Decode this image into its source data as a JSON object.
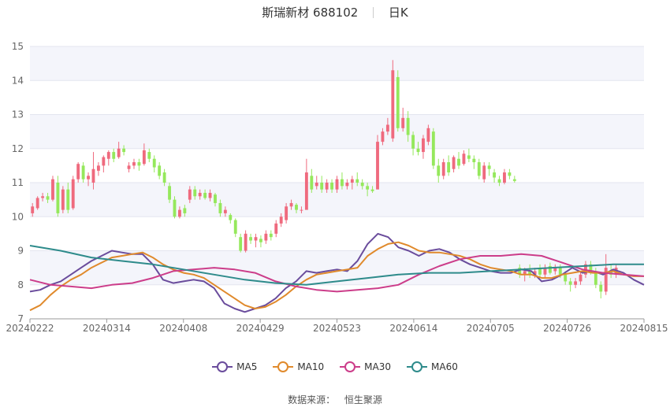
{
  "header": {
    "name": "斯瑞新材 688102",
    "period": "日K"
  },
  "source": {
    "label": "数据来源：",
    "value": "恒生聚源"
  },
  "colors": {
    "up": "#ef6a7e",
    "down": "#95e85c",
    "grid_band": "#f4f5fb",
    "axis": "#999999"
  },
  "chart_data": {
    "type": "candlestick",
    "ylim": [
      7,
      15
    ],
    "yticks": [
      "7",
      "8",
      "9",
      "10",
      "11",
      "12",
      "13",
      "14",
      "15"
    ],
    "xticks": [
      "20240222",
      "20240314",
      "20240408",
      "20240429",
      "20240523",
      "20240614",
      "20240705",
      "20240726",
      "20240815"
    ],
    "xtick_index": [
      0,
      15,
      30,
      45,
      60,
      75,
      90,
      105,
      120
    ],
    "n": 121,
    "candles": [
      [
        10.1,
        10.3,
        10.4,
        10.0
      ],
      [
        10.25,
        10.55,
        10.6,
        10.2
      ],
      [
        10.55,
        10.6,
        10.7,
        10.45
      ],
      [
        10.6,
        10.5,
        10.7,
        10.4
      ],
      [
        10.5,
        11.1,
        11.2,
        10.45
      ],
      [
        11.0,
        10.1,
        11.2,
        10.0
      ],
      [
        10.2,
        10.8,
        10.9,
        10.1
      ],
      [
        10.8,
        10.2,
        11.0,
        10.1
      ],
      [
        10.25,
        11.1,
        11.2,
        10.2
      ],
      [
        11.1,
        11.55,
        11.6,
        11.0
      ],
      [
        11.5,
        11.1,
        11.6,
        11.0
      ],
      [
        11.1,
        11.2,
        11.3,
        10.9
      ],
      [
        11.0,
        11.4,
        11.9,
        10.8
      ],
      [
        11.35,
        11.5,
        11.6,
        11.2
      ],
      [
        11.5,
        11.75,
        11.8,
        11.3
      ],
      [
        11.7,
        11.9,
        11.95,
        11.5
      ],
      [
        11.9,
        11.7,
        12.0,
        11.6
      ],
      [
        11.75,
        12.0,
        12.2,
        11.7
      ],
      [
        12.0,
        11.9,
        12.1,
        11.8
      ],
      [
        11.4,
        11.5,
        11.6,
        11.3
      ],
      [
        11.5,
        11.6,
        11.7,
        11.4
      ],
      [
        11.6,
        11.5,
        11.7,
        11.35
      ],
      [
        11.55,
        11.95,
        12.15,
        11.5
      ],
      [
        11.9,
        11.7,
        12.0,
        11.6
      ],
      [
        11.7,
        11.45,
        11.8,
        11.3
      ],
      [
        11.5,
        11.2,
        11.6,
        11.1
      ],
      [
        11.3,
        11.0,
        11.4,
        10.9
      ],
      [
        10.9,
        10.5,
        11.0,
        10.4
      ],
      [
        10.5,
        10.0,
        10.6,
        9.95
      ],
      [
        10.0,
        10.2,
        10.3,
        9.95
      ],
      [
        10.25,
        10.1,
        10.35,
        10.0
      ],
      [
        10.5,
        10.8,
        10.9,
        10.4
      ],
      [
        10.8,
        10.6,
        10.9,
        10.5
      ],
      [
        10.6,
        10.7,
        10.8,
        10.5
      ],
      [
        10.7,
        10.55,
        10.8,
        10.5
      ],
      [
        10.55,
        10.7,
        10.8,
        10.45
      ],
      [
        10.65,
        10.4,
        10.7,
        10.3
      ],
      [
        10.4,
        10.1,
        10.5,
        10.0
      ],
      [
        10.1,
        10.2,
        10.3,
        10.0
      ],
      [
        10.05,
        9.9,
        10.1,
        9.8
      ],
      [
        9.9,
        9.5,
        9.95,
        9.4
      ],
      [
        9.4,
        9.0,
        9.5,
        8.95
      ],
      [
        9.0,
        9.5,
        9.6,
        8.95
      ],
      [
        9.4,
        9.3,
        9.5,
        9.2
      ],
      [
        9.3,
        9.4,
        9.5,
        9.1
      ],
      [
        9.35,
        9.25,
        9.45,
        9.1
      ],
      [
        9.3,
        9.5,
        9.6,
        9.2
      ],
      [
        9.5,
        9.4,
        9.6,
        9.3
      ],
      [
        9.5,
        9.8,
        9.9,
        9.4
      ],
      [
        9.8,
        10.0,
        10.1,
        9.7
      ],
      [
        9.9,
        10.3,
        10.4,
        9.8
      ],
      [
        10.3,
        10.4,
        10.5,
        10.2
      ],
      [
        10.35,
        10.2,
        10.4,
        10.1
      ],
      [
        10.2,
        10.2,
        10.3,
        10.1
      ],
      [
        10.2,
        11.3,
        11.7,
        10.8
      ],
      [
        11.2,
        10.8,
        11.4,
        10.7
      ],
      [
        10.9,
        11.0,
        11.2,
        10.8
      ],
      [
        11.0,
        10.8,
        11.2,
        10.7
      ],
      [
        10.8,
        11.0,
        11.1,
        10.7
      ],
      [
        11.0,
        10.8,
        11.1,
        10.7
      ],
      [
        10.8,
        11.1,
        11.2,
        10.7
      ],
      [
        11.1,
        10.9,
        11.3,
        10.8
      ],
      [
        10.9,
        11.0,
        11.1,
        10.8
      ],
      [
        11.0,
        11.1,
        11.2,
        10.8
      ],
      [
        11.1,
        11.0,
        11.3,
        10.9
      ],
      [
        11.0,
        10.9,
        11.1,
        10.8
      ],
      [
        10.9,
        10.8,
        11.0,
        10.6
      ],
      [
        10.8,
        10.75,
        10.9,
        10.7
      ],
      [
        10.8,
        12.2,
        12.4,
        10.9
      ],
      [
        12.2,
        12.5,
        12.6,
        12.1
      ],
      [
        12.5,
        12.7,
        12.9,
        12.4
      ],
      [
        12.3,
        14.3,
        14.6,
        12.2
      ],
      [
        14.1,
        12.6,
        14.3,
        12.5
      ],
      [
        12.6,
        12.9,
        13.2,
        12.5
      ],
      [
        12.9,
        12.4,
        13.1,
        12.2
      ],
      [
        12.4,
        12.0,
        12.5,
        11.8
      ],
      [
        12.0,
        11.9,
        12.2,
        11.8
      ],
      [
        11.9,
        12.3,
        12.4,
        11.7
      ],
      [
        12.2,
        12.6,
        12.7,
        12.1
      ],
      [
        12.5,
        11.5,
        12.6,
        11.4
      ],
      [
        11.5,
        11.2,
        11.7,
        11.0
      ],
      [
        11.2,
        11.6,
        11.7,
        11.1
      ],
      [
        11.6,
        11.3,
        11.8,
        11.2
      ],
      [
        11.4,
        11.75,
        11.8,
        11.3
      ],
      [
        11.7,
        11.5,
        11.9,
        11.4
      ],
      [
        11.55,
        11.85,
        11.95,
        11.5
      ],
      [
        11.8,
        11.7,
        12.0,
        11.6
      ],
      [
        11.7,
        11.6,
        11.8,
        11.4
      ],
      [
        11.6,
        11.2,
        11.7,
        11.1
      ],
      [
        11.1,
        11.5,
        11.6,
        11.0
      ],
      [
        11.5,
        11.4,
        11.6,
        11.2
      ],
      [
        11.3,
        11.15,
        11.4,
        11.0
      ],
      [
        11.1,
        11.0,
        11.2,
        10.9
      ],
      [
        11.0,
        11.3,
        11.4,
        10.95
      ],
      [
        11.3,
        11.2,
        11.4,
        11.1
      ],
      [
        11.1,
        11.05,
        11.2,
        11.0
      ],
      [
        8.5,
        8.3,
        8.6,
        8.2
      ],
      [
        8.3,
        8.4,
        8.5,
        8.1
      ],
      [
        8.4,
        8.3,
        8.6,
        8.2
      ],
      [
        8.3,
        8.4,
        8.5,
        8.2
      ],
      [
        8.5,
        8.3,
        8.6,
        8.2
      ],
      [
        8.3,
        8.5,
        8.6,
        8.2
      ],
      [
        8.55,
        8.35,
        8.65,
        8.3
      ],
      [
        8.4,
        8.5,
        8.6,
        8.3
      ],
      [
        8.5,
        8.3,
        8.6,
        8.2
      ],
      [
        8.3,
        8.1,
        8.4,
        8.0
      ],
      [
        8.1,
        8.0,
        8.2,
        7.8
      ],
      [
        8.0,
        8.1,
        8.2,
        7.9
      ],
      [
        8.1,
        8.3,
        8.4,
        8.0
      ],
      [
        8.3,
        8.6,
        8.7,
        8.2
      ],
      [
        8.6,
        8.4,
        8.7,
        8.3
      ],
      [
        8.4,
        8.0,
        8.5,
        7.9
      ],
      [
        8.0,
        7.8,
        8.1,
        7.6
      ],
      [
        7.8,
        8.5,
        8.9,
        7.7
      ],
      [
        8.4,
        8.3,
        8.6,
        8.2
      ],
      [
        8.3,
        8.5,
        8.6,
        8.2
      ]
    ],
    "series": [
      {
        "name": "MA5",
        "color": "#6a4c9c",
        "points": [
          [
            0,
            7.8
          ],
          [
            2,
            7.85
          ],
          [
            4,
            8.0
          ],
          [
            6,
            8.1
          ],
          [
            8,
            8.3
          ],
          [
            10,
            8.5
          ],
          [
            12,
            8.7
          ],
          [
            14,
            8.85
          ],
          [
            16,
            9.0
          ],
          [
            18,
            8.95
          ],
          [
            20,
            8.9
          ],
          [
            22,
            8.9
          ],
          [
            24,
            8.6
          ],
          [
            26,
            8.15
          ],
          [
            28,
            8.05
          ],
          [
            30,
            8.1
          ],
          [
            32,
            8.15
          ],
          [
            34,
            8.1
          ],
          [
            36,
            7.9
          ],
          [
            38,
            7.45
          ],
          [
            40,
            7.3
          ],
          [
            42,
            7.2
          ],
          [
            44,
            7.3
          ],
          [
            46,
            7.4
          ],
          [
            48,
            7.6
          ],
          [
            50,
            7.9
          ],
          [
            52,
            8.1
          ],
          [
            54,
            8.4
          ],
          [
            56,
            8.35
          ],
          [
            58,
            8.4
          ],
          [
            60,
            8.45
          ],
          [
            62,
            8.4
          ],
          [
            64,
            8.7
          ],
          [
            66,
            9.2
          ],
          [
            68,
            9.5
          ],
          [
            70,
            9.4
          ],
          [
            72,
            9.1
          ],
          [
            74,
            9.0
          ],
          [
            76,
            8.85
          ],
          [
            78,
            9.0
          ],
          [
            80,
            9.05
          ],
          [
            82,
            8.95
          ],
          [
            84,
            8.75
          ],
          [
            86,
            8.6
          ],
          [
            88,
            8.5
          ],
          [
            90,
            8.4
          ],
          [
            92,
            8.35
          ],
          [
            94,
            8.35
          ],
          [
            96,
            8.45
          ],
          [
            98,
            8.4
          ],
          [
            100,
            8.1
          ],
          [
            102,
            8.15
          ],
          [
            104,
            8.3
          ],
          [
            106,
            8.5
          ],
          [
            108,
            8.35
          ],
          [
            110,
            8.4
          ],
          [
            112,
            8.3
          ],
          [
            114,
            8.45
          ],
          [
            116,
            8.35
          ],
          [
            118,
            8.15
          ],
          [
            120,
            8.0
          ]
        ]
      },
      {
        "name": "MA10",
        "color": "#e08a2c",
        "points": [
          [
            0,
            7.25
          ],
          [
            2,
            7.4
          ],
          [
            4,
            7.7
          ],
          [
            6,
            7.95
          ],
          [
            8,
            8.15
          ],
          [
            10,
            8.3
          ],
          [
            12,
            8.5
          ],
          [
            14,
            8.65
          ],
          [
            16,
            8.8
          ],
          [
            18,
            8.85
          ],
          [
            20,
            8.9
          ],
          [
            22,
            8.95
          ],
          [
            24,
            8.8
          ],
          [
            26,
            8.6
          ],
          [
            28,
            8.45
          ],
          [
            30,
            8.35
          ],
          [
            32,
            8.3
          ],
          [
            34,
            8.2
          ],
          [
            36,
            8.0
          ],
          [
            38,
            7.8
          ],
          [
            40,
            7.6
          ],
          [
            42,
            7.4
          ],
          [
            44,
            7.3
          ],
          [
            46,
            7.35
          ],
          [
            48,
            7.5
          ],
          [
            50,
            7.7
          ],
          [
            52,
            7.95
          ],
          [
            54,
            8.15
          ],
          [
            56,
            8.3
          ],
          [
            58,
            8.35
          ],
          [
            60,
            8.4
          ],
          [
            62,
            8.45
          ],
          [
            64,
            8.5
          ],
          [
            66,
            8.85
          ],
          [
            68,
            9.05
          ],
          [
            70,
            9.2
          ],
          [
            72,
            9.25
          ],
          [
            74,
            9.15
          ],
          [
            76,
            9.0
          ],
          [
            78,
            8.95
          ],
          [
            80,
            8.95
          ],
          [
            82,
            8.9
          ],
          [
            84,
            8.85
          ],
          [
            86,
            8.75
          ],
          [
            88,
            8.6
          ],
          [
            90,
            8.5
          ],
          [
            92,
            8.45
          ],
          [
            94,
            8.4
          ],
          [
            96,
            8.3
          ],
          [
            98,
            8.3
          ],
          [
            100,
            8.2
          ],
          [
            102,
            8.2
          ],
          [
            104,
            8.3
          ],
          [
            106,
            8.35
          ],
          [
            108,
            8.4
          ],
          [
            110,
            8.35
          ],
          [
            112,
            8.35
          ],
          [
            114,
            8.4
          ],
          [
            116,
            8.3
          ],
          [
            118,
            8.25
          ],
          [
            120,
            8.25
          ]
        ]
      },
      {
        "name": "MA30",
        "color": "#cc3d8a",
        "points": [
          [
            0,
            8.15
          ],
          [
            4,
            8.0
          ],
          [
            8,
            7.95
          ],
          [
            12,
            7.9
          ],
          [
            16,
            8.0
          ],
          [
            20,
            8.05
          ],
          [
            24,
            8.2
          ],
          [
            28,
            8.4
          ],
          [
            32,
            8.45
          ],
          [
            36,
            8.5
          ],
          [
            40,
            8.45
          ],
          [
            44,
            8.35
          ],
          [
            48,
            8.1
          ],
          [
            52,
            7.95
          ],
          [
            56,
            7.85
          ],
          [
            60,
            7.8
          ],
          [
            64,
            7.85
          ],
          [
            68,
            7.9
          ],
          [
            72,
            8.0
          ],
          [
            76,
            8.3
          ],
          [
            80,
            8.55
          ],
          [
            84,
            8.75
          ],
          [
            88,
            8.85
          ],
          [
            92,
            8.85
          ],
          [
            96,
            8.9
          ],
          [
            100,
            8.85
          ],
          [
            104,
            8.65
          ],
          [
            108,
            8.45
          ],
          [
            112,
            8.35
          ],
          [
            116,
            8.3
          ],
          [
            120,
            8.25
          ]
        ]
      },
      {
        "name": "MA60",
        "color": "#2e8b8b",
        "points": [
          [
            0,
            9.15
          ],
          [
            6,
            9.0
          ],
          [
            12,
            8.8
          ],
          [
            18,
            8.7
          ],
          [
            24,
            8.6
          ],
          [
            30,
            8.45
          ],
          [
            36,
            8.3
          ],
          [
            42,
            8.15
          ],
          [
            48,
            8.05
          ],
          [
            54,
            8.0
          ],
          [
            60,
            8.1
          ],
          [
            66,
            8.2
          ],
          [
            72,
            8.3
          ],
          [
            78,
            8.35
          ],
          [
            84,
            8.35
          ],
          [
            90,
            8.4
          ],
          [
            96,
            8.45
          ],
          [
            102,
            8.5
          ],
          [
            108,
            8.55
          ],
          [
            114,
            8.6
          ],
          [
            120,
            8.6
          ]
        ]
      }
    ]
  }
}
